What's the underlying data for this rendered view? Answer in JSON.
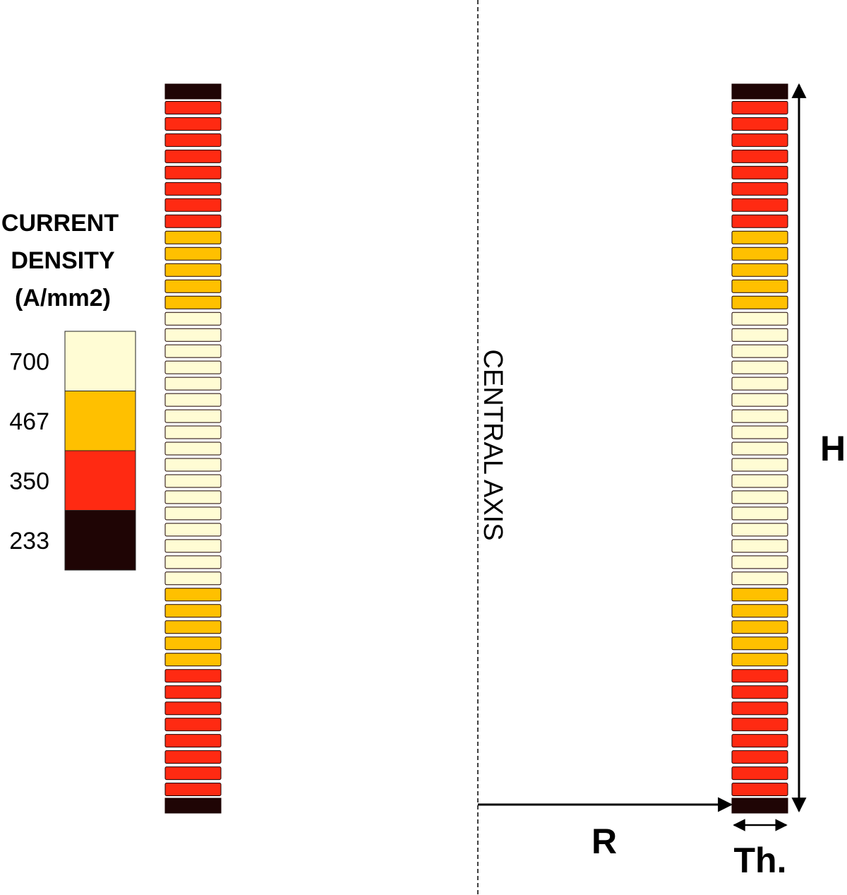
{
  "legend": {
    "title_lines": [
      "CURRENT",
      "DENSITY",
      "(A/mm2)"
    ],
    "entries": [
      {
        "value": "700",
        "color": "#fffcd4"
      },
      {
        "value": "467",
        "color": "#ffc000"
      },
      {
        "value": "350",
        "color": "#ff2a12"
      },
      {
        "value": "233",
        "color": "#1f0505"
      }
    ]
  },
  "axis_label": "CENTRAL AXIS",
  "dimensions": {
    "height": "H",
    "radius": "R",
    "thickness": "Th."
  },
  "coil": {
    "pancakes": [
      {
        "level": "233"
      },
      {
        "level": "350"
      },
      {
        "level": "350"
      },
      {
        "level": "350"
      },
      {
        "level": "350"
      },
      {
        "level": "350"
      },
      {
        "level": "350"
      },
      {
        "level": "350"
      },
      {
        "level": "350"
      },
      {
        "level": "467"
      },
      {
        "level": "467"
      },
      {
        "level": "467"
      },
      {
        "level": "467"
      },
      {
        "level": "467"
      },
      {
        "level": "700"
      },
      {
        "level": "700"
      },
      {
        "level": "700"
      },
      {
        "level": "700"
      },
      {
        "level": "700"
      },
      {
        "level": "700"
      },
      {
        "level": "700"
      },
      {
        "level": "700"
      },
      {
        "level": "700"
      },
      {
        "level": "700"
      },
      {
        "level": "700"
      },
      {
        "level": "700"
      },
      {
        "level": "700"
      },
      {
        "level": "700"
      },
      {
        "level": "700"
      },
      {
        "level": "700"
      },
      {
        "level": "700"
      },
      {
        "level": "467"
      },
      {
        "level": "467"
      },
      {
        "level": "467"
      },
      {
        "level": "467"
      },
      {
        "level": "467"
      },
      {
        "level": "350"
      },
      {
        "level": "350"
      },
      {
        "level": "350"
      },
      {
        "level": "350"
      },
      {
        "level": "350"
      },
      {
        "level": "350"
      },
      {
        "level": "350"
      },
      {
        "level": "350"
      },
      {
        "level": "233"
      }
    ]
  }
}
